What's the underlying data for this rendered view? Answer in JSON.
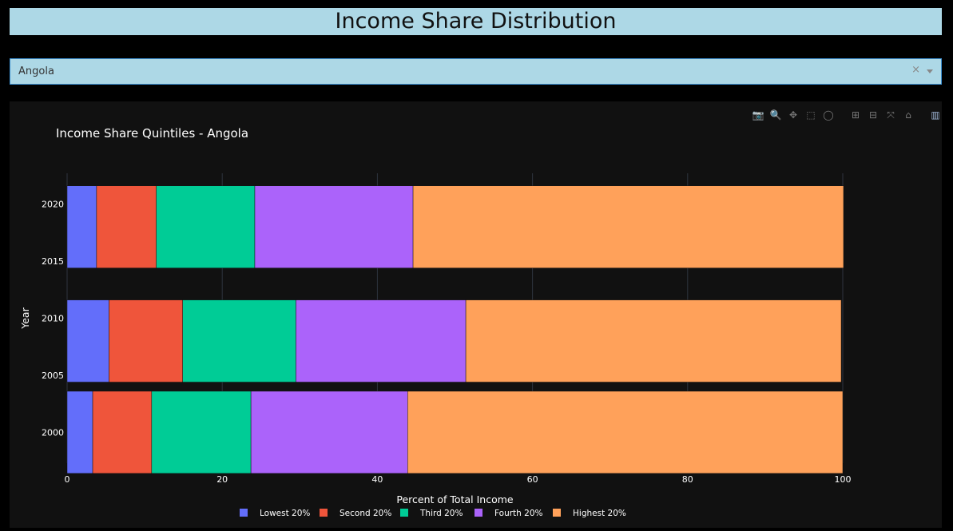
{
  "header": {
    "title": "Income Share Distribution"
  },
  "country_select": {
    "value": "Angola",
    "clear_symbol": "×"
  },
  "modebar": {
    "buttons": [
      {
        "name": "camera-icon",
        "glyph": "📷"
      },
      {
        "name": "zoom-icon",
        "glyph": "🔍"
      },
      {
        "name": "pan-icon",
        "glyph": "✥"
      },
      {
        "name": "box-select-icon",
        "glyph": "⬚"
      },
      {
        "name": "lasso-icon",
        "glyph": "◯"
      },
      {
        "name": "zoom-in-icon",
        "glyph": "⊞"
      },
      {
        "name": "zoom-out-icon",
        "glyph": "⊟"
      },
      {
        "name": "autoscale-icon",
        "glyph": "⤧"
      },
      {
        "name": "reset-axes-icon",
        "glyph": "⌂"
      },
      {
        "name": "plotly-logo-icon",
        "glyph": "▥"
      }
    ]
  },
  "chart_data": {
    "type": "bar",
    "orientation": "horizontal",
    "barmode": "stack",
    "title": "Income Share Quintiles - Angola",
    "xlabel": "Percent of Total Income",
    "ylabel": "Year",
    "xlim": [
      0,
      100
    ],
    "ylim": [
      1997.3,
      2022.7
    ],
    "x_ticks": [
      0,
      20,
      40,
      60,
      80,
      100
    ],
    "y_ticks": [
      2000,
      2005,
      2010,
      2015,
      2020
    ],
    "categories": [
      2000,
      2008,
      2018
    ],
    "series": [
      {
        "name": "Lowest 20%",
        "color": "#636efa",
        "values": [
          3.3,
          5.4,
          3.8
        ]
      },
      {
        "name": "Second 20%",
        "color": "#ef553b",
        "values": [
          7.6,
          9.5,
          7.7
        ]
      },
      {
        "name": "Third 20%",
        "color": "#00cc96",
        "values": [
          12.8,
          14.6,
          12.7
        ]
      },
      {
        "name": "Fourth 20%",
        "color": "#ab63fa",
        "values": [
          20.2,
          21.9,
          20.4
        ]
      },
      {
        "name": "Highest 20%",
        "color": "#ffa15a",
        "values": [
          56.1,
          48.4,
          55.5
        ]
      }
    ],
    "legend_position": "bottom-center",
    "grid": true
  }
}
